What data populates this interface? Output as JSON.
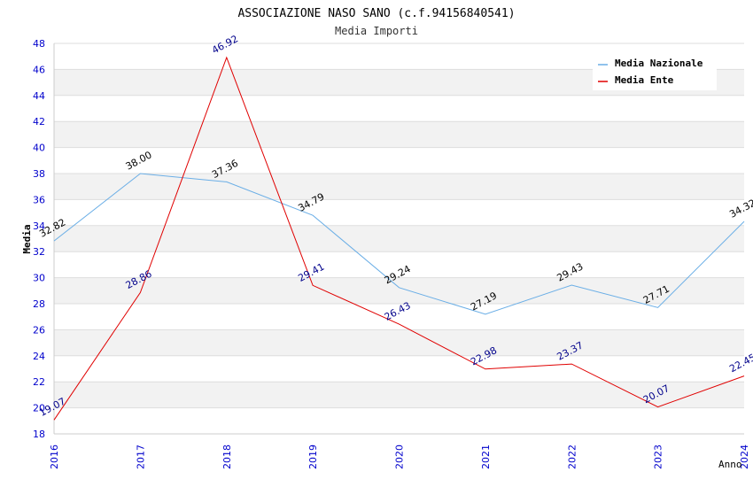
{
  "chart_data": {
    "type": "line",
    "title": "ASSOCIAZIONE NASO SANO (c.f.94156840541)",
    "subtitle": "Media Importi",
    "xlabel": "Anno",
    "ylabel": "Media",
    "x": [
      "2016",
      "2017",
      "2018",
      "2019",
      "2020",
      "2021",
      "2022",
      "2023",
      "2024"
    ],
    "ylim": [
      18,
      48
    ],
    "yticks": [
      "18",
      "20",
      "22",
      "24",
      "26",
      "28",
      "30",
      "32",
      "34",
      "36",
      "38",
      "40",
      "42",
      "44",
      "46",
      "48"
    ],
    "grid": true,
    "legend_position": "top-right",
    "series": [
      {
        "name": "Media Nazionale",
        "color": "#6aaee6",
        "label_color": "#000000",
        "values": [
          32.82,
          38.0,
          37.36,
          34.79,
          29.24,
          27.19,
          29.43,
          27.71,
          34.32
        ],
        "labels": [
          "32.82",
          "38.00",
          "37.36",
          "34.79",
          "29.24",
          "27.19",
          "29.43",
          "27.71",
          "34.32"
        ]
      },
      {
        "name": "Media Ente",
        "color": "#e00000",
        "label_color": "#00008b",
        "values": [
          19.07,
          28.86,
          46.92,
          29.41,
          26.43,
          22.98,
          23.37,
          20.07,
          22.45
        ],
        "labels": [
          "19.07",
          "28.86",
          "46.92",
          "29.41",
          "26.43",
          "22.98",
          "23.37",
          "20.07",
          "22.45"
        ]
      }
    ]
  }
}
